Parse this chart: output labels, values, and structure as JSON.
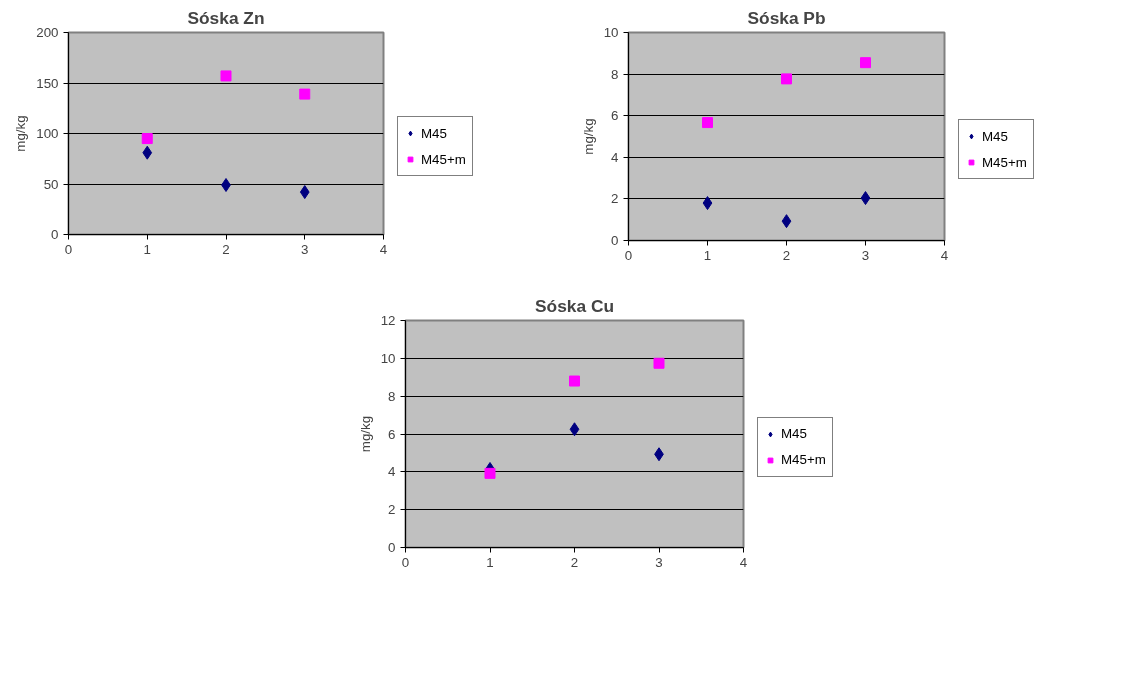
{
  "chart_data": [
    {
      "type": "scatter",
      "title": "Sóska Zn",
      "ylabel": "mg/kg",
      "x": [
        1,
        2,
        3
      ],
      "xlim": [
        0,
        4
      ],
      "xticks": [
        0,
        1,
        2,
        3,
        4
      ],
      "ylim": [
        0,
        200
      ],
      "yticks": [
        0,
        50,
        100,
        150,
        200
      ],
      "grid": "y",
      "legend": "right",
      "series": [
        {
          "name": "M45",
          "color": "#000080",
          "marker": "diamond",
          "values": [
            81,
            49,
            42
          ]
        },
        {
          "name": "M45+m",
          "color": "#ff00ff",
          "marker": "square",
          "values": [
            95,
            157,
            139
          ]
        }
      ]
    },
    {
      "type": "scatter",
      "title": "Sóska Pb",
      "ylabel": "mg/kg",
      "x": [
        1,
        2,
        3
      ],
      "xlim": [
        0,
        4
      ],
      "xticks": [
        0,
        1,
        2,
        3,
        4
      ],
      "ylim": [
        0,
        10
      ],
      "yticks": [
        0,
        2,
        4,
        6,
        8,
        10
      ],
      "grid": "y",
      "legend": "right",
      "series": [
        {
          "name": "M45",
          "color": "#000080",
          "marker": "diamond",
          "values": [
            1.8,
            0.93,
            2.04
          ]
        },
        {
          "name": "M45+m",
          "color": "#ff00ff",
          "marker": "square",
          "values": [
            5.67,
            7.77,
            8.55
          ]
        }
      ]
    },
    {
      "type": "scatter",
      "title": "Sóska Cu",
      "ylabel": "mg/kg",
      "x": [
        1,
        2,
        3
      ],
      "xlim": [
        0,
        4
      ],
      "xticks": [
        0,
        1,
        2,
        3,
        4
      ],
      "ylim": [
        0,
        12
      ],
      "yticks": [
        0,
        2,
        4,
        6,
        8,
        10,
        12
      ],
      "grid": "y",
      "legend": "right",
      "series": [
        {
          "name": "M45",
          "color": "#000080",
          "marker": "diamond",
          "values": [
            4.15,
            6.25,
            4.93
          ]
        },
        {
          "name": "M45+m",
          "color": "#ff00ff",
          "marker": "square",
          "values": [
            3.92,
            8.8,
            9.74
          ]
        }
      ]
    }
  ]
}
